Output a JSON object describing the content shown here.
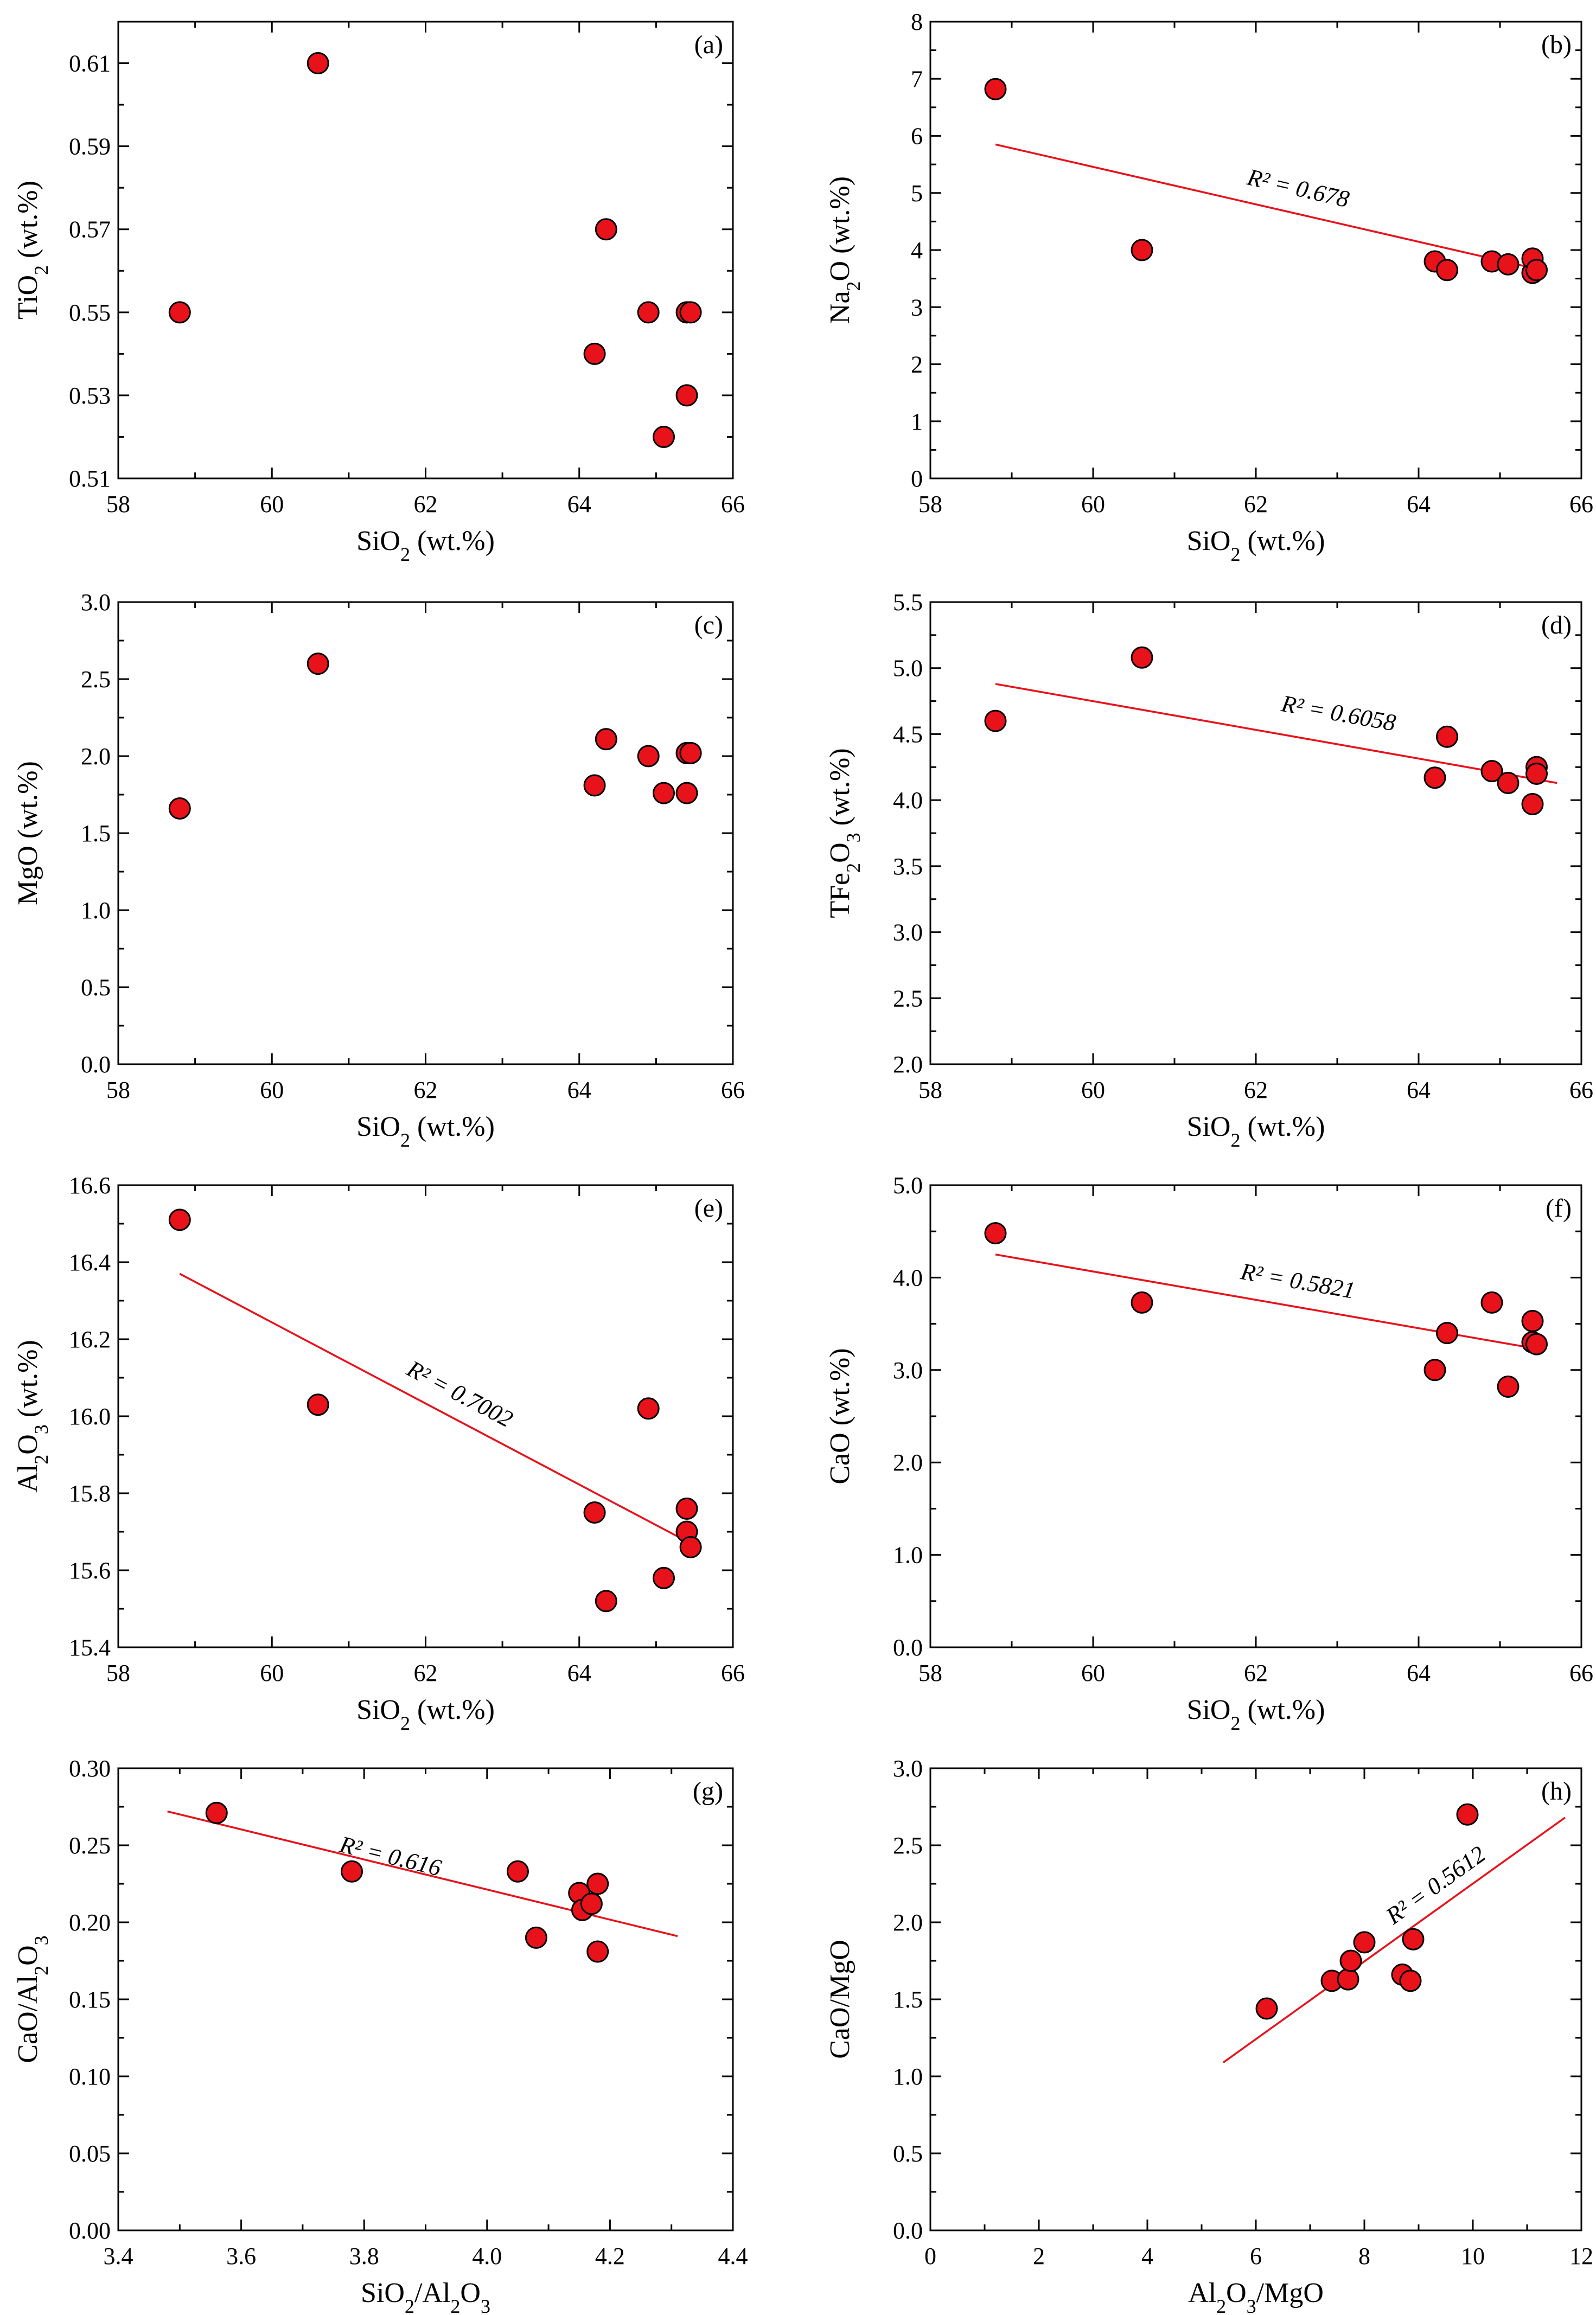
{
  "figure": {
    "colors": {
      "marker": "#e8121b",
      "marker_edge": "#000000",
      "trend": "#e8121b",
      "axis": "#000000"
    }
  },
  "chart_data": [
    {
      "panel": "(a)",
      "type": "scatter",
      "xlabel": "SiO2 (wt.%)",
      "ylabel": "TiO2 (wt.%)",
      "xlabel_parts": [
        [
          "SiO",
          "normal"
        ],
        [
          "2",
          "sub"
        ],
        [
          " (wt.%)",
          "normal"
        ]
      ],
      "ylabel_parts": [
        [
          "TiO",
          "normal"
        ],
        [
          "2",
          "sub"
        ],
        [
          " (wt.%)",
          "normal"
        ]
      ],
      "xlim": [
        58,
        66
      ],
      "ylim": [
        0.51,
        0.62
      ],
      "xticks": [
        58,
        60,
        62,
        64,
        66
      ],
      "xtick_labels": [
        "58",
        "60",
        "62",
        "64",
        "66"
      ],
      "yticks": [
        0.51,
        0.53,
        0.55,
        0.57,
        0.59,
        0.61
      ],
      "ytick_labels": [
        "0.51",
        "0.53",
        "0.55",
        "0.57",
        "0.59",
        "0.61"
      ],
      "x": [
        58.8,
        60.6,
        64.2,
        64.35,
        64.9,
        65.1,
        65.4,
        65.4,
        65.45
      ],
      "y": [
        0.55,
        0.61,
        0.54,
        0.57,
        0.55,
        0.52,
        0.53,
        0.55,
        0.55
      ],
      "trend": null,
      "r2_label": null
    },
    {
      "panel": "(b)",
      "type": "scatter",
      "xlabel": "SiO2 (wt.%)",
      "ylabel": "Na2O (wt.%)",
      "xlabel_parts": [
        [
          "SiO",
          "normal"
        ],
        [
          "2",
          "sub"
        ],
        [
          " (wt.%)",
          "normal"
        ]
      ],
      "ylabel_parts": [
        [
          "Na",
          "normal"
        ],
        [
          "2",
          "sub"
        ],
        [
          "O (wt.%)",
          "normal"
        ]
      ],
      "xlim": [
        58,
        66
      ],
      "ylim": [
        0,
        8
      ],
      "xticks": [
        58,
        60,
        62,
        64,
        66
      ],
      "xtick_labels": [
        "58",
        "60",
        "62",
        "64",
        "66"
      ],
      "yticks": [
        0,
        1,
        2,
        3,
        4,
        5,
        6,
        7,
        8
      ],
      "ytick_labels": [
        "0",
        "1",
        "2",
        "3",
        "4",
        "5",
        "6",
        "7",
        "8"
      ],
      "x": [
        58.8,
        60.6,
        64.2,
        64.35,
        64.9,
        65.1,
        65.4,
        65.4,
        65.45
      ],
      "y": [
        6.82,
        4.0,
        3.8,
        3.65,
        3.8,
        3.75,
        3.6,
        3.85,
        3.65
      ],
      "trend": {
        "x": [
          58.8,
          65.45
        ],
        "y": [
          5.85,
          3.67
        ]
      },
      "r2_label": "R² = 0.678",
      "r2_pos": [
        62.5,
        4.95
      ]
    },
    {
      "panel": "(c)",
      "type": "scatter",
      "xlabel": "SiO2 (wt.%)",
      "ylabel": "MgO (wt.%)",
      "xlabel_parts": [
        [
          "SiO",
          "normal"
        ],
        [
          "2",
          "sub"
        ],
        [
          " (wt.%)",
          "normal"
        ]
      ],
      "ylabel_parts": [
        [
          "MgO (wt.%)",
          "normal"
        ]
      ],
      "xlim": [
        58,
        66
      ],
      "ylim": [
        0,
        3
      ],
      "xticks": [
        58,
        60,
        62,
        64,
        66
      ],
      "xtick_labels": [
        "58",
        "60",
        "62",
        "64",
        "66"
      ],
      "yticks": [
        0,
        0.5,
        1,
        1.5,
        2,
        2.5,
        3
      ],
      "ytick_labels": [
        "0.0",
        "0.5",
        "1.0",
        "1.5",
        "2.0",
        "2.5",
        "3.0"
      ],
      "x": [
        58.8,
        60.6,
        64.2,
        64.35,
        64.9,
        65.1,
        65.4,
        65.4,
        65.45
      ],
      "y": [
        1.66,
        2.6,
        1.81,
        2.11,
        2.0,
        1.76,
        1.76,
        2.02,
        2.02
      ],
      "trend": null,
      "r2_label": null
    },
    {
      "panel": "(d)",
      "type": "scatter",
      "xlabel": "SiO2 (wt.%)",
      "ylabel": "TFe2O3 (wt.%)",
      "xlabel_parts": [
        [
          "SiO",
          "normal"
        ],
        [
          "2",
          "sub"
        ],
        [
          " (wt.%)",
          "normal"
        ]
      ],
      "ylabel_parts": [
        [
          "TFe",
          "normal"
        ],
        [
          "2",
          "sub"
        ],
        [
          "O",
          "normal"
        ],
        [
          "3",
          "sub"
        ],
        [
          " (wt.%)",
          "normal"
        ]
      ],
      "xlim": [
        58,
        66
      ],
      "ylim": [
        2.0,
        5.5
      ],
      "xticks": [
        58,
        60,
        62,
        64,
        66
      ],
      "xtick_labels": [
        "58",
        "60",
        "62",
        "64",
        "66"
      ],
      "yticks": [
        2.0,
        2.5,
        3.0,
        3.5,
        4.0,
        4.5,
        5.0,
        5.5
      ],
      "ytick_labels": [
        "2.0",
        "2.5",
        "3.0",
        "3.5",
        "4.0",
        "4.5",
        "5.0",
        "5.5"
      ],
      "x": [
        58.8,
        60.6,
        64.2,
        64.35,
        64.9,
        65.1,
        65.4,
        65.45,
        65.45
      ],
      "y": [
        4.6,
        5.08,
        4.17,
        4.48,
        4.22,
        4.13,
        3.97,
        4.25,
        4.2
      ],
      "trend": {
        "x": [
          58.8,
          65.7
        ],
        "y": [
          4.88,
          4.13
        ]
      },
      "r2_label": "R² = 0.6058",
      "r2_pos": [
        63.0,
        4.6
      ]
    },
    {
      "panel": "(e)",
      "type": "scatter",
      "xlabel": "SiO2 (wt.%)",
      "ylabel": "Al2O3 (wt.%)",
      "xlabel_parts": [
        [
          "SiO",
          "normal"
        ],
        [
          "2",
          "sub"
        ],
        [
          " (wt.%)",
          "normal"
        ]
      ],
      "ylabel_parts": [
        [
          "Al",
          "normal"
        ],
        [
          "2",
          "sub"
        ],
        [
          "O",
          "normal"
        ],
        [
          "3",
          "sub"
        ],
        [
          " (wt.%)",
          "normal"
        ]
      ],
      "xlim": [
        58,
        66
      ],
      "ylim": [
        15.4,
        16.6
      ],
      "xticks": [
        58,
        60,
        62,
        64,
        66
      ],
      "xtick_labels": [
        "58",
        "60",
        "62",
        "64",
        "66"
      ],
      "yticks": [
        15.4,
        15.6,
        15.8,
        16.0,
        16.2,
        16.4,
        16.6
      ],
      "ytick_labels": [
        "15.4",
        "15.6",
        "15.8",
        "16.0",
        "16.2",
        "16.4",
        "16.6"
      ],
      "x": [
        58.8,
        60.6,
        64.2,
        64.35,
        64.9,
        65.1,
        65.4,
        65.4,
        65.45
      ],
      "y": [
        16.51,
        16.03,
        15.75,
        15.52,
        16.02,
        15.58,
        15.76,
        15.7,
        15.66
      ],
      "trend": {
        "x": [
          58.8,
          65.45
        ],
        "y": [
          16.37,
          15.67
        ]
      },
      "r2_label": "R² = 0.7002",
      "r2_pos": [
        62.4,
        16.04
      ]
    },
    {
      "panel": "(f)",
      "type": "scatter",
      "xlabel": "SiO2 (wt.%)",
      "ylabel": "CaO (wt.%)",
      "xlabel_parts": [
        [
          "SiO",
          "normal"
        ],
        [
          "2",
          "sub"
        ],
        [
          " (wt.%)",
          "normal"
        ]
      ],
      "ylabel_parts": [
        [
          "CaO (wt.%)",
          "normal"
        ]
      ],
      "xlim": [
        58,
        66
      ],
      "ylim": [
        0,
        5
      ],
      "xticks": [
        58,
        60,
        62,
        64,
        66
      ],
      "xtick_labels": [
        "58",
        "60",
        "62",
        "64",
        "66"
      ],
      "yticks": [
        0,
        1,
        2,
        3,
        4,
        5
      ],
      "ytick_labels": [
        "0.0",
        "1.0",
        "2.0",
        "3.0",
        "4.0",
        "5.0"
      ],
      "x": [
        58.8,
        60.6,
        64.2,
        64.35,
        64.9,
        65.1,
        65.4,
        65.4,
        65.45
      ],
      "y": [
        4.48,
        3.73,
        3.0,
        3.4,
        3.73,
        2.82,
        3.53,
        3.3,
        3.28
      ],
      "trend": {
        "x": [
          58.8,
          65.45
        ],
        "y": [
          4.25,
          3.23
        ]
      },
      "r2_label": "R² = 0.5821",
      "r2_pos": [
        62.5,
        3.88
      ]
    },
    {
      "panel": "(g)",
      "type": "scatter",
      "xlabel": "SiO2/Al2O3",
      "ylabel": "CaO/Al2O3",
      "xlabel_parts": [
        [
          "SiO",
          "normal"
        ],
        [
          "2",
          "sub"
        ],
        [
          "/Al",
          "normal"
        ],
        [
          "2",
          "sub"
        ],
        [
          "O",
          "normal"
        ],
        [
          "3",
          "sub"
        ]
      ],
      "ylabel_parts": [
        [
          "CaO/Al",
          "normal"
        ],
        [
          "2",
          "sub"
        ],
        [
          "O",
          "normal"
        ],
        [
          "3",
          "sub"
        ]
      ],
      "xlim": [
        3.4,
        4.4
      ],
      "ylim": [
        0,
        0.3
      ],
      "xticks": [
        3.4,
        3.6,
        3.8,
        4.0,
        4.2,
        4.4
      ],
      "xtick_labels": [
        "3.4",
        "3.6",
        "3.8",
        "4.0",
        "4.2",
        "4.4"
      ],
      "yticks": [
        0,
        0.05,
        0.1,
        0.15,
        0.2,
        0.25,
        0.3
      ],
      "ytick_labels": [
        "0.00",
        "0.05",
        "0.10",
        "0.15",
        "0.20",
        "0.25",
        "0.30"
      ],
      "x": [
        3.56,
        3.78,
        4.05,
        4.08,
        4.15,
        4.155,
        4.17,
        4.18,
        4.18
      ],
      "y": [
        0.271,
        0.233,
        0.233,
        0.19,
        0.219,
        0.208,
        0.212,
        0.225,
        0.181
      ],
      "trend": {
        "x": [
          3.48,
          4.31
        ],
        "y": [
          0.272,
          0.191
        ]
      },
      "r2_label": "R² = 0.616",
      "r2_pos": [
        3.84,
        0.238
      ]
    },
    {
      "panel": "(h)",
      "type": "scatter",
      "xlabel": "Al2O3/MgO",
      "ylabel": "CaO/MgO",
      "xlabel_parts": [
        [
          "Al",
          "normal"
        ],
        [
          "2",
          "sub"
        ],
        [
          "O",
          "normal"
        ],
        [
          "3",
          "sub"
        ],
        [
          "/MgO",
          "normal"
        ]
      ],
      "ylabel_parts": [
        [
          "CaO/MgO",
          "normal"
        ]
      ],
      "xlim": [
        0,
        12
      ],
      "ylim": [
        0,
        3
      ],
      "xticks": [
        0,
        2,
        4,
        6,
        8,
        10,
        12
      ],
      "xtick_labels": [
        "0",
        "2",
        "4",
        "6",
        "8",
        "10",
        "12"
      ],
      "yticks": [
        0,
        0.5,
        1,
        1.5,
        2,
        2.5,
        3
      ],
      "ytick_labels": [
        "0.0",
        "0.5",
        "1.0",
        "1.5",
        "2.0",
        "2.5",
        "3.0"
      ],
      "x": [
        6.2,
        7.4,
        7.7,
        7.75,
        8.0,
        8.7,
        8.85,
        8.9,
        9.9
      ],
      "y": [
        1.44,
        1.62,
        1.63,
        1.75,
        1.87,
        1.66,
        1.62,
        1.89,
        2.7
      ],
      "trend": {
        "x": [
          5.4,
          11.7
        ],
        "y": [
          1.09,
          2.68
        ]
      },
      "r2_label": "R² = 0.5612",
      "r2_pos": [
        9.4,
        2.2
      ]
    }
  ]
}
